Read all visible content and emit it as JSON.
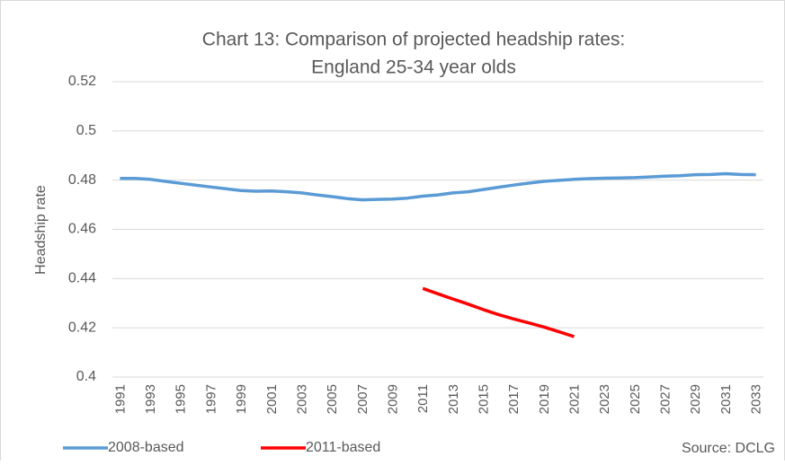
{
  "chart_data": {
    "type": "line",
    "title": "Chart 13: Comparison of projected headship rates:",
    "subtitle": "England 25-34 year olds",
    "ylabel": "Headship rate",
    "annotation": "Source: DCLG",
    "categories": [
      "1991",
      null,
      "1993",
      null,
      "1995",
      null,
      "1997",
      null,
      "1999",
      null,
      "2001",
      null,
      "2003",
      null,
      "2005",
      null,
      "2007",
      null,
      "2009",
      null,
      "2011",
      null,
      "2013",
      null,
      "2015",
      null,
      "2017",
      null,
      "2019",
      null,
      "2021",
      null,
      "2023",
      null,
      "2025",
      null,
      "2027",
      null,
      "2029",
      null,
      "2031",
      null,
      "2033"
    ],
    "series": [
      {
        "name": "2008-based",
        "color": "#5b9bd5",
        "values": [
          0.4807,
          0.4807,
          0.4803,
          0.4795,
          0.4787,
          0.478,
          0.4772,
          0.4765,
          0.4758,
          0.4755,
          0.4756,
          0.4753,
          0.4748,
          0.474,
          0.4733,
          0.4725,
          0.472,
          0.4722,
          0.4723,
          0.4727,
          0.4735,
          0.474,
          0.4748,
          0.4753,
          0.4762,
          0.4771,
          0.478,
          0.4788,
          0.4795,
          0.4799,
          0.4803,
          0.4806,
          0.4808,
          0.4809,
          0.481,
          0.4813,
          0.4816,
          0.4818,
          0.4822,
          0.4823,
          0.4826,
          0.4823,
          0.4822
        ]
      },
      {
        "name": "2011-based",
        "color": "#ff0000",
        "values": [
          null,
          null,
          null,
          null,
          null,
          null,
          null,
          null,
          null,
          null,
          null,
          null,
          null,
          null,
          null,
          null,
          null,
          null,
          null,
          null,
          0.436,
          0.4338,
          0.4317,
          0.4296,
          0.4274,
          0.4254,
          0.4236,
          0.422,
          0.4203,
          0.4184,
          0.4164,
          null,
          null,
          null,
          null,
          null,
          null,
          null,
          null,
          null,
          null,
          null,
          null
        ]
      }
    ],
    "ylim": [
      0.4,
      0.52
    ],
    "yticks": [
      0.4,
      0.42,
      0.44,
      0.46,
      0.48,
      0.5,
      0.52
    ],
    "grid": true,
    "legend": "bottom-left"
  }
}
